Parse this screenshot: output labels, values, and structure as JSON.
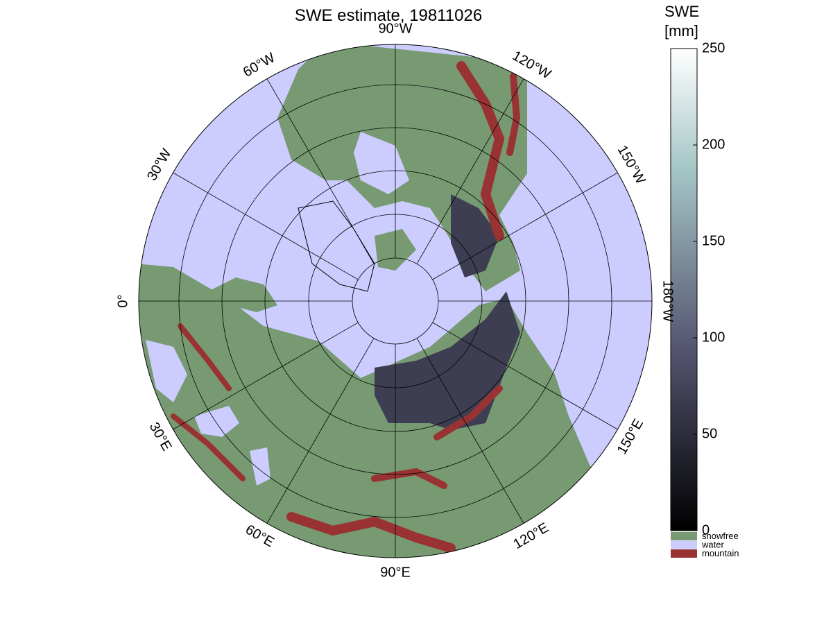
{
  "title": "SWE estimate, 19811026",
  "map": {
    "longitude_labels": [
      "0°",
      "30°E",
      "60°E",
      "90°E",
      "120°E",
      "150°E",
      "180°W",
      "150°W",
      "120°W",
      "90°W",
      "60°W",
      "30°W"
    ]
  },
  "colorbar": {
    "label_lines": [
      "SWE",
      "[mm]"
    ],
    "lim": [
      0,
      250
    ],
    "ticks": [
      0,
      50,
      100,
      150,
      200,
      250
    ]
  },
  "legend": [
    {
      "label": "snowfree",
      "color": "#779a72"
    },
    {
      "label": "water",
      "color": "#ccccff"
    },
    {
      "label": "mountain",
      "color": "#993333"
    }
  ]
}
